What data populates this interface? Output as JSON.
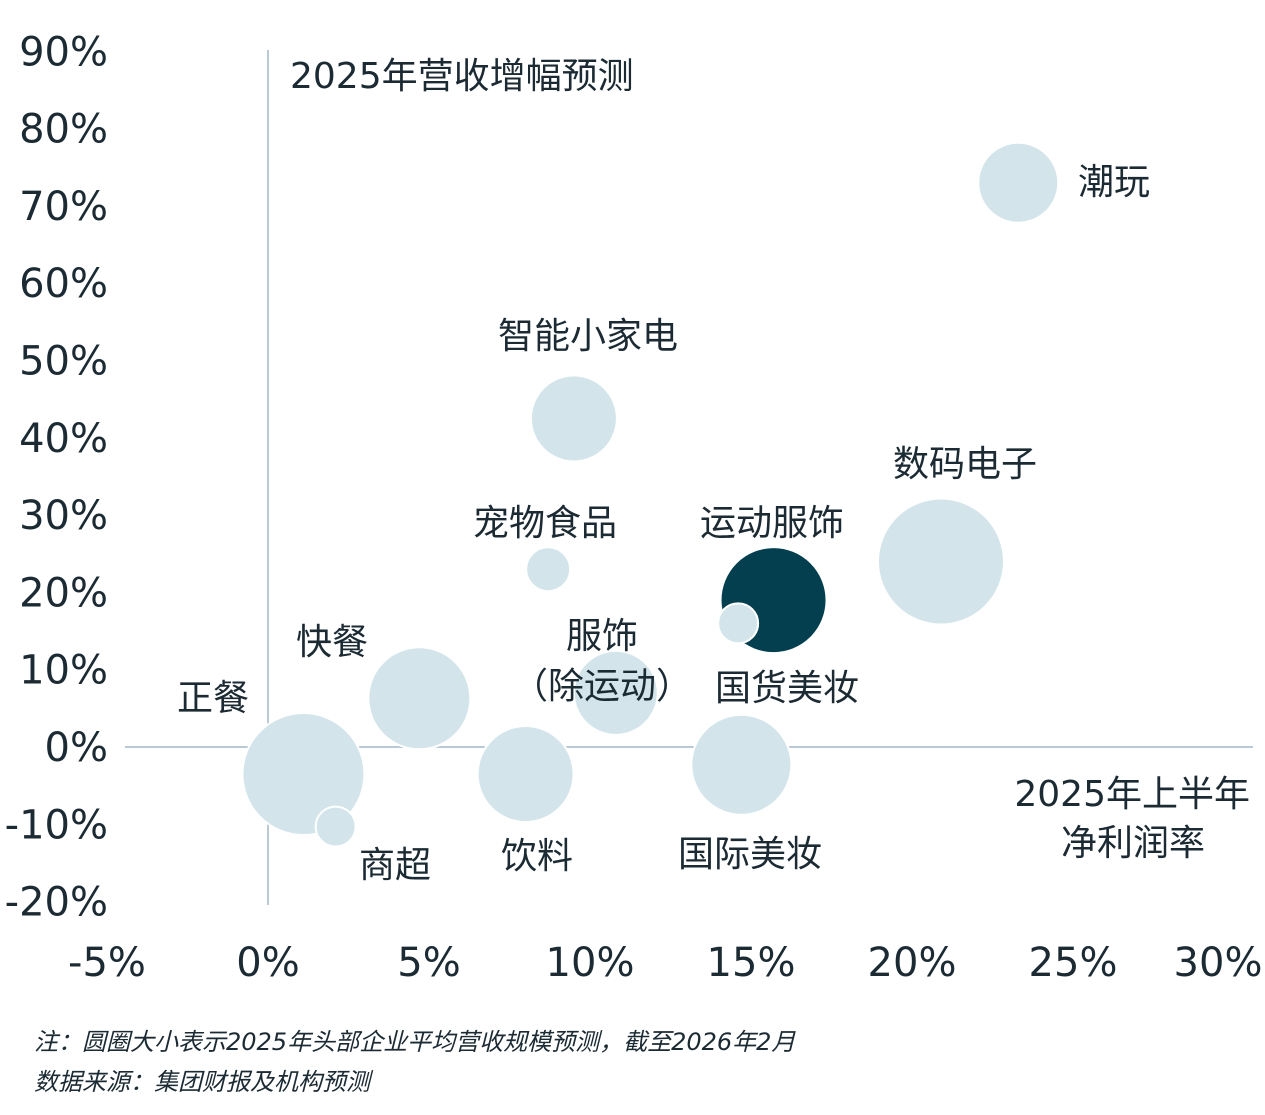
{
  "chart_data": {
    "type": "scatter",
    "subtype": "bubble",
    "ylabel": "2025年营收增幅预测",
    "xlabel": [
      "2025年上半年",
      "净利润率"
    ],
    "xlim": [
      -5,
      30
    ],
    "ylim": [
      -20,
      90
    ],
    "x_ticks": [
      "-5%",
      "0%",
      "5%",
      "10%",
      "15%",
      "20%",
      "25%",
      "30%"
    ],
    "y_ticks": [
      "90%",
      "80%",
      "70%",
      "60%",
      "50%",
      "40%",
      "30%",
      "20%",
      "10%",
      "0%",
      "-10%",
      "-20%"
    ],
    "grid": false,
    "colors": {
      "bubble": "#d3e5eb",
      "highlight": "#033f4f",
      "axis": "#b9c9d5",
      "text": "#1b2a33"
    },
    "points": [
      {
        "label": "潮玩",
        "x": 23.3,
        "y": 73,
        "size": 40
      },
      {
        "label": "智能小家电",
        "x": 9.5,
        "y": 42.5,
        "size": 43
      },
      {
        "label": "数码电子",
        "x": 20.9,
        "y": 24,
        "size": 63
      },
      {
        "label": "宠物食品",
        "x": 8.7,
        "y": 23,
        "size": 22
      },
      {
        "label": "运动服饰",
        "x": 15.7,
        "y": 19,
        "size": 53,
        "highlight": true
      },
      {
        "label": "国货美妆",
        "x": 14.6,
        "y": 16,
        "size": 20
      },
      {
        "label": "服饰",
        "label2": "（除运动）",
        "x": 10.8,
        "y": 7,
        "size": 42
      },
      {
        "label": "快餐",
        "x": 4.7,
        "y": 6.3,
        "size": 51
      },
      {
        "label": "正餐",
        "x": 1.1,
        "y": -3.5,
        "size": 61
      },
      {
        "label": "商超",
        "x": 2.1,
        "y": -10.3,
        "size": 20
      },
      {
        "label": "饮料",
        "x": 8.0,
        "y": -3.5,
        "size": 48
      },
      {
        "label": "国际美妆",
        "x": 14.7,
        "y": -2.3,
        "size": 50
      }
    ]
  },
  "notes": {
    "note": "注：圆圈大小表示2025年头部企业平均营收规模预测，截至2026年2月",
    "source": "数据来源：集团财报及机构预测"
  }
}
